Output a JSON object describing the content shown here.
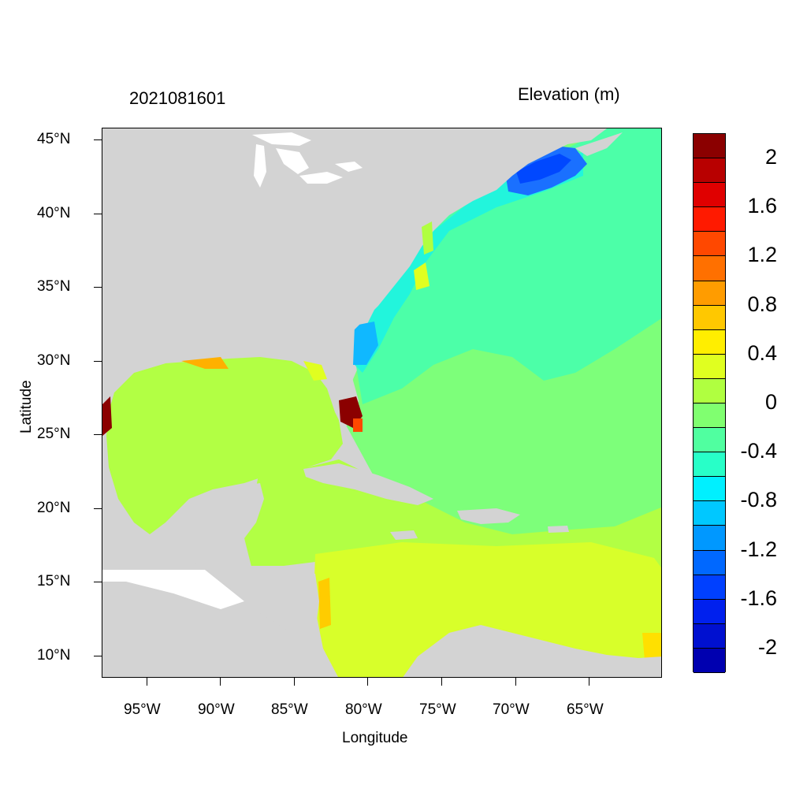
{
  "titles": {
    "left": "2021081601",
    "right": "Elevation (m)"
  },
  "axes": {
    "xlabel": "Longitude",
    "ylabel": "Latitude",
    "x_ticks": [
      "95°W",
      "90°W",
      "85°W",
      "80°W",
      "75°W",
      "70°W",
      "65°W"
    ],
    "y_ticks": [
      "45°N",
      "40°N",
      "35°N",
      "30°N",
      "25°N",
      "20°N",
      "15°N",
      "10°N"
    ]
  },
  "map": {
    "region": "Gulf of Mexico, Caribbean Sea and western North Atlantic",
    "lon_range": [
      -98,
      -60
    ],
    "lat_range": [
      8.5,
      46
    ],
    "land_color": "#d3d3d3",
    "variable": "Elevation (m)"
  },
  "colorbar": {
    "labels": [
      "2",
      "1.6",
      "1.2",
      "0.8",
      "0.4",
      "0",
      "-0.4",
      "-0.8",
      "-1.2",
      "-1.6",
      "-2"
    ],
    "colors": [
      "#8b0000",
      "#b80000",
      "#e00000",
      "#ff1a00",
      "#ff4800",
      "#ff7000",
      "#ff9c00",
      "#ffc800",
      "#ffee00",
      "#e0ff20",
      "#b0ff40",
      "#80ff70",
      "#50ffa0",
      "#28ffc8",
      "#00f0ff",
      "#00c8ff",
      "#0098ff",
      "#0068ff",
      "#0040ff",
      "#0020ee",
      "#0010d0",
      "#0000b0"
    ]
  }
}
